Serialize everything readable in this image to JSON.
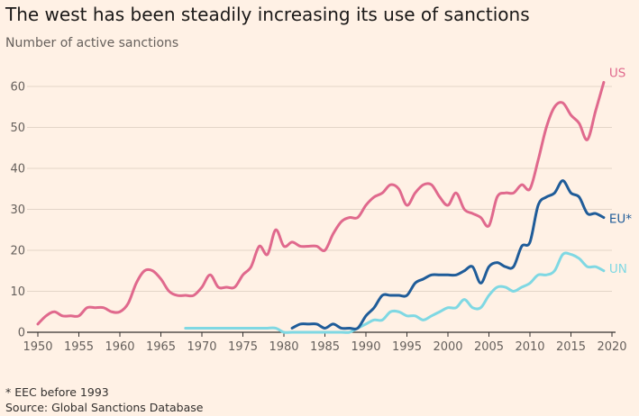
{
  "header": {
    "title": "The west has been steadily increasing its use of sanctions",
    "subtitle": "Number of active sanctions"
  },
  "footer": {
    "footnote": "* EEC before 1993",
    "source": "Source: Global Sanctions Database"
  },
  "colors": {
    "us": "#e0698d",
    "eu": "#1f5c99",
    "un": "#7fd8e3",
    "grid": "#e3d5c8",
    "axis": "#33302e",
    "background": "#fff1e5"
  },
  "chart_data": {
    "type": "line",
    "title": "The west has been steadily increasing its use of sanctions",
    "ylabel": "Number of active sanctions",
    "xlim": [
      1950,
      2020
    ],
    "ylim": [
      0,
      65
    ],
    "xticks": [
      1950,
      1955,
      1960,
      1965,
      1970,
      1975,
      1980,
      1985,
      1990,
      1995,
      2000,
      2005,
      2010,
      2015,
      2020
    ],
    "yticks": [
      0,
      10,
      20,
      30,
      40,
      50,
      60
    ],
    "grid": true,
    "legend": "direct-labels-right",
    "series": [
      {
        "name": "US",
        "color": "#e0698d",
        "x": [
          1950,
          1951,
          1952,
          1953,
          1954,
          1955,
          1956,
          1957,
          1958,
          1959,
          1960,
          1961,
          1962,
          1963,
          1964,
          1965,
          1966,
          1967,
          1968,
          1969,
          1970,
          1971,
          1972,
          1973,
          1974,
          1975,
          1976,
          1977,
          1978,
          1979,
          1980,
          1981,
          1982,
          1983,
          1984,
          1985,
          1986,
          1987,
          1988,
          1989,
          1990,
          1991,
          1992,
          1993,
          1994,
          1995,
          1996,
          1997,
          1998,
          1999,
          2000,
          2001,
          2002,
          2003,
          2004,
          2005,
          2006,
          2007,
          2008,
          2009,
          2010,
          2011,
          2012,
          2013,
          2014,
          2015,
          2016,
          2017,
          2018,
          2019
        ],
        "values": [
          2,
          4,
          5,
          4,
          4,
          4,
          6,
          6,
          6,
          5,
          5,
          7,
          12,
          15,
          15,
          13,
          10,
          9,
          9,
          9,
          11,
          14,
          11,
          11,
          11,
          14,
          16,
          21,
          19,
          25,
          21,
          22,
          21,
          21,
          21,
          20,
          24,
          27,
          28,
          28,
          31,
          33,
          34,
          36,
          35,
          31,
          34,
          36,
          36,
          33,
          31,
          34,
          30,
          29,
          28,
          26,
          33,
          34,
          34,
          36,
          35,
          42,
          50,
          55,
          56,
          53,
          51,
          47,
          54,
          61
        ]
      },
      {
        "name": "EU*",
        "color": "#1f5c99",
        "x": [
          1981,
          1982,
          1983,
          1984,
          1985,
          1986,
          1987,
          1988,
          1989,
          1990,
          1991,
          1992,
          1993,
          1994,
          1995,
          1996,
          1997,
          1998,
          1999,
          2000,
          2001,
          2002,
          2003,
          2004,
          2005,
          2006,
          2007,
          2008,
          2009,
          2010,
          2011,
          2012,
          2013,
          2014,
          2015,
          2016,
          2017,
          2018,
          2019
        ],
        "values": [
          1,
          2,
          2,
          2,
          1,
          2,
          1,
          1,
          1,
          4,
          6,
          9,
          9,
          9,
          9,
          12,
          13,
          14,
          14,
          14,
          14,
          15,
          16,
          12,
          16,
          17,
          16,
          16,
          21,
          22,
          31,
          33,
          34,
          37,
          34,
          33,
          29,
          29,
          28
        ]
      },
      {
        "name": "UN",
        "color": "#7fd8e3",
        "x": [
          1968,
          1969,
          1970,
          1971,
          1972,
          1973,
          1974,
          1975,
          1976,
          1977,
          1978,
          1979,
          1980,
          1981,
          1982,
          1983,
          1984,
          1985,
          1986,
          1987,
          1988,
          1989,
          1990,
          1991,
          1992,
          1993,
          1994,
          1995,
          1996,
          1997,
          1998,
          1999,
          2000,
          2001,
          2002,
          2003,
          2004,
          2005,
          2006,
          2007,
          2008,
          2009,
          2010,
          2011,
          2012,
          2013,
          2014,
          2015,
          2016,
          2017,
          2018,
          2019
        ],
        "values": [
          1,
          1,
          1,
          1,
          1,
          1,
          1,
          1,
          1,
          1,
          1,
          1,
          0,
          0,
          0,
          0,
          0,
          0,
          0,
          0,
          0,
          1,
          2,
          3,
          3,
          5,
          5,
          4,
          4,
          3,
          4,
          5,
          6,
          6,
          8,
          6,
          6,
          9,
          11,
          11,
          10,
          11,
          12,
          14,
          14,
          15,
          19,
          19,
          18,
          16,
          16,
          15
        ]
      }
    ]
  }
}
